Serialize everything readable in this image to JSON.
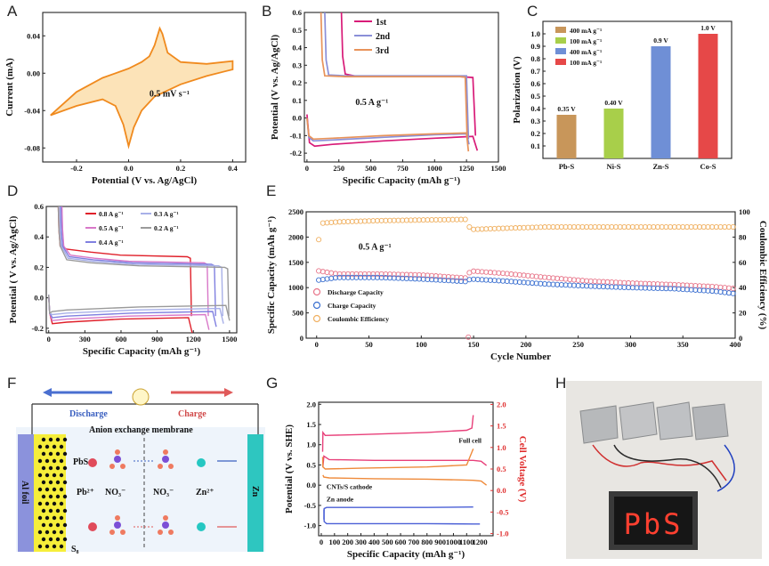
{
  "panels": {
    "A": {
      "label": "A"
    },
    "B": {
      "label": "B"
    },
    "C": {
      "label": "C"
    },
    "D": {
      "label": "D"
    },
    "E": {
      "label": "E"
    },
    "F": {
      "label": "F"
    },
    "G": {
      "label": "G"
    },
    "H": {
      "label": "H"
    }
  },
  "chart_data": [
    {
      "id": "A",
      "type": "line",
      "title": "",
      "xlabel": "Potential (V vs. Ag/AgCl)",
      "ylabel": "Current (mA)",
      "xlim": [
        -0.33,
        0.45
      ],
      "ylim": [
        -0.095,
        0.065
      ],
      "xticks": [
        "-0.2",
        "0.0",
        "0.2",
        "0.4"
      ],
      "xtick_vals": [
        -0.2,
        0.0,
        0.2,
        0.4
      ],
      "yticks": [
        "0.04",
        "0.00",
        "-0.04",
        "-0.08"
      ],
      "ytick_vals": [
        0.04,
        0.0,
        -0.04,
        -0.08
      ],
      "annotation": "0.5 mV s⁻¹",
      "color": "#f08a1e",
      "series": [
        {
          "name": "CV",
          "x": [
            -0.3,
            -0.2,
            -0.1,
            -0.05,
            -0.02,
            0.0,
            0.02,
            0.05,
            0.1,
            0.2,
            0.3,
            0.4,
            0.4,
            0.3,
            0.2,
            0.15,
            0.13,
            0.12,
            0.1,
            0.08,
            0.05,
            0.0,
            -0.1,
            -0.2,
            -0.3
          ],
          "y": [
            -0.045,
            -0.035,
            -0.028,
            -0.035,
            -0.055,
            -0.078,
            -0.058,
            -0.04,
            -0.025,
            -0.012,
            -0.003,
            0.004,
            0.013,
            0.01,
            0.012,
            0.022,
            0.042,
            0.048,
            0.03,
            0.018,
            0.012,
            0.005,
            -0.005,
            -0.02,
            -0.045
          ]
        }
      ]
    },
    {
      "id": "B",
      "type": "line",
      "xlabel": "Specific Capacity (mAh g⁻¹)",
      "ylabel": "Potential (V vs. Ag/AgCl)",
      "xlim": [
        -20,
        1500
      ],
      "ylim": [
        -0.25,
        0.6
      ],
      "xticks": [
        "0",
        "250",
        "500",
        "750",
        "1000",
        "1250",
        "1500"
      ],
      "xtick_vals": [
        0,
        250,
        500,
        750,
        1000,
        1250,
        1500
      ],
      "yticks": [
        "0.6",
        "0.5",
        "0.4",
        "0.3",
        "0.2",
        "0.1",
        "0.0",
        "-0.1",
        "-0.2"
      ],
      "ytick_vals": [
        0.6,
        0.5,
        0.4,
        0.3,
        0.2,
        0.1,
        0.0,
        -0.1,
        -0.2
      ],
      "annotation": "0.5 A g⁻¹",
      "legend": [
        {
          "name": "1st",
          "color": "#d81b78"
        },
        {
          "name": "2nd",
          "color": "#8a8fd8"
        },
        {
          "name": "3rd",
          "color": "#e8935a"
        }
      ],
      "series": [
        {
          "name": "1st discharge",
          "color": "#d81b78",
          "x": [
            0,
            20,
            60,
            200,
            600,
            1000,
            1300,
            1335
          ],
          "y": [
            0.02,
            -0.14,
            -0.16,
            -0.15,
            -0.13,
            -0.115,
            -0.105,
            -0.185
          ]
        },
        {
          "name": "1st charge",
          "color": "#d81b78",
          "x": [
            270,
            280,
            300,
            400,
            800,
            1200,
            1300,
            1320
          ],
          "y": [
            0.6,
            0.35,
            0.25,
            0.235,
            0.235,
            0.235,
            0.23,
            -0.1
          ]
        },
        {
          "name": "2nd discharge",
          "color": "#8a8fd8",
          "x": [
            0,
            15,
            50,
            200,
            600,
            1000,
            1250,
            1270
          ],
          "y": [
            0.0,
            -0.11,
            -0.13,
            -0.125,
            -0.11,
            -0.095,
            -0.09,
            -0.15
          ]
        },
        {
          "name": "2nd charge",
          "color": "#8a8fd8",
          "x": [
            140,
            150,
            170,
            300,
            800,
            1200,
            1250,
            1265
          ],
          "y": [
            0.6,
            0.33,
            0.245,
            0.24,
            0.24,
            0.24,
            0.24,
            -0.12
          ]
        },
        {
          "name": "3rd discharge",
          "color": "#e8935a",
          "x": [
            0,
            15,
            50,
            200,
            600,
            1000,
            1250,
            1265
          ],
          "y": [
            0.0,
            -0.1,
            -0.12,
            -0.115,
            -0.1,
            -0.09,
            -0.085,
            -0.19
          ]
        },
        {
          "name": "3rd charge",
          "color": "#e8935a",
          "x": [
            110,
            120,
            140,
            300,
            800,
            1200,
            1240,
            1255
          ],
          "y": [
            0.6,
            0.33,
            0.24,
            0.235,
            0.235,
            0.235,
            0.232,
            -0.12
          ]
        }
      ]
    },
    {
      "id": "C",
      "type": "bar",
      "xlabel": "",
      "ylabel": "Polarization (V)",
      "ylim": [
        0,
        1.1
      ],
      "yticks": [
        "0.1",
        "0.2",
        "0.3",
        "0.4",
        "0.5",
        "0.6",
        "0.7",
        "0.8",
        "0.9",
        "1.0"
      ],
      "ytick_vals": [
        0.1,
        0.2,
        0.3,
        0.4,
        0.5,
        0.6,
        0.7,
        0.8,
        0.9,
        1.0
      ],
      "categories": [
        "Pb-S",
        "Ni-S",
        "Zn-S",
        "Co-S"
      ],
      "values": [
        0.35,
        0.4,
        0.9,
        1.0
      ],
      "value_labels": [
        "0.35 V",
        "0.40 V",
        "0.9 V",
        "1.0 V"
      ],
      "colors": [
        "#c8965a",
        "#a8cf4a",
        "#6f8fd6",
        "#e64848"
      ],
      "legend": [
        "400 mA g⁻¹",
        "100 mA g⁻¹",
        "400 mA g⁻¹",
        "100 mA g⁻¹"
      ]
    },
    {
      "id": "D",
      "type": "line",
      "xlabel": "Specific Capacity (mAh g⁻¹)",
      "ylabel": "Potential ( V vs. Ag/AgCl)",
      "xlim": [
        -20,
        1560
      ],
      "ylim": [
        -0.23,
        0.6
      ],
      "xticks": [
        "0",
        "300",
        "600",
        "900",
        "1200",
        "1500"
      ],
      "xtick_vals": [
        0,
        300,
        600,
        900,
        1200,
        1500
      ],
      "yticks": [
        "0.6",
        "0.4",
        "0.2",
        "0.0",
        "-0.2"
      ],
      "ytick_vals": [
        0.6,
        0.4,
        0.2,
        0.0,
        -0.2
      ],
      "legend": [
        {
          "name": "0.8 A g⁻¹",
          "color": "#e0202a"
        },
        {
          "name": "0.5 A g⁻¹",
          "color": "#d878c8"
        },
        {
          "name": "0.4 A g⁻¹",
          "color": "#8080e0"
        },
        {
          "name": "0.3 A g⁻¹",
          "color": "#a8b0e8"
        },
        {
          "name": "0.2 A g⁻¹",
          "color": "#9a9a9a"
        }
      ],
      "series": [
        {
          "name": "0.8",
          "color": "#e0202a",
          "xmax": 1190,
          "plateau_c": 0.27,
          "plateau_d": -0.19,
          "start": 150
        },
        {
          "name": "0.5",
          "color": "#d878c8",
          "xmax": 1330,
          "plateau_c": 0.23,
          "plateau_d": -0.17,
          "start": 180
        },
        {
          "name": "0.4",
          "color": "#8080e0",
          "xmax": 1390,
          "plateau_c": 0.22,
          "plateau_d": -0.15,
          "start": 170
        },
        {
          "name": "0.3",
          "color": "#a8b0e8",
          "xmax": 1450,
          "plateau_c": 0.21,
          "plateau_d": -0.13,
          "start": 160
        },
        {
          "name": "0.2",
          "color": "#9a9a9a",
          "xmax": 1500,
          "plateau_c": 0.2,
          "plateau_d": -0.11,
          "start": 150
        }
      ]
    },
    {
      "id": "E",
      "type": "scatter",
      "xlabel": "Cycle Number",
      "ylabel": "Specific Capacity (mAh g⁻¹)",
      "y2label": "Coulombic Efficiency (%)",
      "xlim": [
        -10,
        400
      ],
      "ylim": [
        0,
        2500
      ],
      "y2lim": [
        0,
        100
      ],
      "xticks": [
        "0",
        "50",
        "100",
        "150",
        "200",
        "250",
        "300",
        "350",
        "400"
      ],
      "xtick_vals": [
        0,
        50,
        100,
        150,
        200,
        250,
        300,
        350,
        400
      ],
      "yticks": [
        "0",
        "500",
        "1000",
        "1500",
        "2000",
        "2500"
      ],
      "ytick_vals": [
        0,
        500,
        1000,
        1500,
        2000,
        2500
      ],
      "y2ticks": [
        "0",
        "20",
        "40",
        "60",
        "80",
        "100"
      ],
      "y2tick_vals": [
        0,
        20,
        40,
        60,
        80,
        100
      ],
      "annotation": "0.5 A g⁻¹",
      "legend": [
        {
          "name": "Discharge Capacity",
          "color": "#e8768a"
        },
        {
          "name": "Charge Capacity",
          "color": "#3a6fd0"
        },
        {
          "name": "Coulombic Efficiency",
          "color": "#f0b060"
        }
      ],
      "discharge": {
        "x": [
          2,
          20,
          60,
          100,
          143,
          147,
          180,
          220,
          260,
          300,
          340,
          380,
          400
        ],
        "y": [
          1330,
          1270,
          1270,
          1250,
          1190,
          1330,
          1280,
          1200,
          1130,
          1090,
          1060,
          1020,
          980
        ]
      },
      "charge": {
        "x": [
          2,
          20,
          60,
          100,
          143,
          147,
          180,
          220,
          260,
          300,
          340,
          380,
          400
        ],
        "y": [
          1150,
          1200,
          1200,
          1170,
          1120,
          1170,
          1130,
          1070,
          1030,
          1000,
          980,
          930,
          880
        ]
      },
      "ce": {
        "x": [
          2,
          5,
          20,
          60,
          100,
          143,
          147,
          180,
          220,
          260,
          300,
          340,
          380,
          400
        ],
        "y": [
          78,
          91,
          92,
          93,
          93.5,
          94,
          86,
          87,
          88,
          88,
          88,
          88,
          88,
          88
        ]
      },
      "outliers": [
        {
          "x": 145,
          "y": 20
        }
      ]
    },
    {
      "id": "G",
      "type": "line",
      "xlabel": "Specific Capacity (mAh g⁻¹)",
      "ylabel": "Potential (V vs. SHE)",
      "y2label": "Cell Voltage (V)",
      "xlim": [
        -20,
        1300
      ],
      "ylim": [
        -1.25,
        2.05
      ],
      "y2lim": [
        -1.05,
        2.05
      ],
      "xticks": [
        "0",
        "100",
        "200",
        "300",
        "400",
        "500",
        "600",
        "700",
        "800",
        "900",
        "1000",
        "1100",
        "1200"
      ],
      "xtick_vals": [
        0,
        100,
        200,
        300,
        400,
        500,
        600,
        700,
        800,
        900,
        1000,
        1100,
        1200
      ],
      "yticks": [
        "2.0",
        "1.5",
        "1.0",
        "0.5",
        "0.0",
        "-0.5",
        "-1.0"
      ],
      "ytick_vals": [
        2.0,
        1.5,
        1.0,
        0.5,
        0.0,
        -0.5,
        -1.0
      ],
      "y2ticks": [
        "2.0",
        "1.5",
        "1.0",
        "0.5",
        "0.0",
        "-0.5",
        "-1.0"
      ],
      "y2tick_vals": [
        2.0,
        1.5,
        1.0,
        0.5,
        0.0,
        -0.5,
        -1.0
      ],
      "labels": {
        "full": "Full cell",
        "cathode": "CNTs/S cathode",
        "anode": "Zn anode"
      }
    }
  ],
  "schematic_F": {
    "discharge": "Discharge",
    "charge": "Charge",
    "membrane": "Anion exchange membrane",
    "al": "Al foil",
    "zn": "Zn",
    "pbs": "PbS",
    "pb": "Pb²⁺",
    "no3a": "NO₃⁻",
    "no3b": "NO₃⁻",
    "zn2": "Zn²⁺",
    "s8": "S₈"
  },
  "photo_H": {
    "text": "PbS"
  }
}
